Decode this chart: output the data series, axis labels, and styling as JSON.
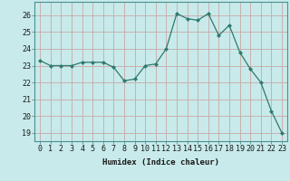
{
  "x": [
    0,
    1,
    2,
    3,
    4,
    5,
    6,
    7,
    8,
    9,
    10,
    11,
    12,
    13,
    14,
    15,
    16,
    17,
    18,
    19,
    20,
    21,
    22,
    23
  ],
  "y": [
    23.3,
    23.0,
    23.0,
    23.0,
    23.2,
    23.2,
    23.2,
    22.9,
    22.1,
    22.2,
    23.0,
    23.1,
    24.0,
    26.1,
    25.8,
    25.7,
    26.1,
    24.8,
    25.4,
    23.8,
    22.8,
    22.0,
    20.3,
    19.0
  ],
  "xlabel": "Humidex (Indice chaleur)",
  "xlim": [
    -0.5,
    23.5
  ],
  "ylim": [
    18.5,
    26.8
  ],
  "yticks": [
    19,
    20,
    21,
    22,
    23,
    24,
    25,
    26
  ],
  "xticks": [
    0,
    1,
    2,
    3,
    4,
    5,
    6,
    7,
    8,
    9,
    10,
    11,
    12,
    13,
    14,
    15,
    16,
    17,
    18,
    19,
    20,
    21,
    22,
    23
  ],
  "line_color": "#2d7a6e",
  "marker": "D",
  "marker_size": 2.0,
  "bg_color": "#c8eaea",
  "grid_color": "#c8a8a8",
  "label_fontsize": 6.5,
  "tick_fontsize": 6.0,
  "spine_color": "#4a9090"
}
